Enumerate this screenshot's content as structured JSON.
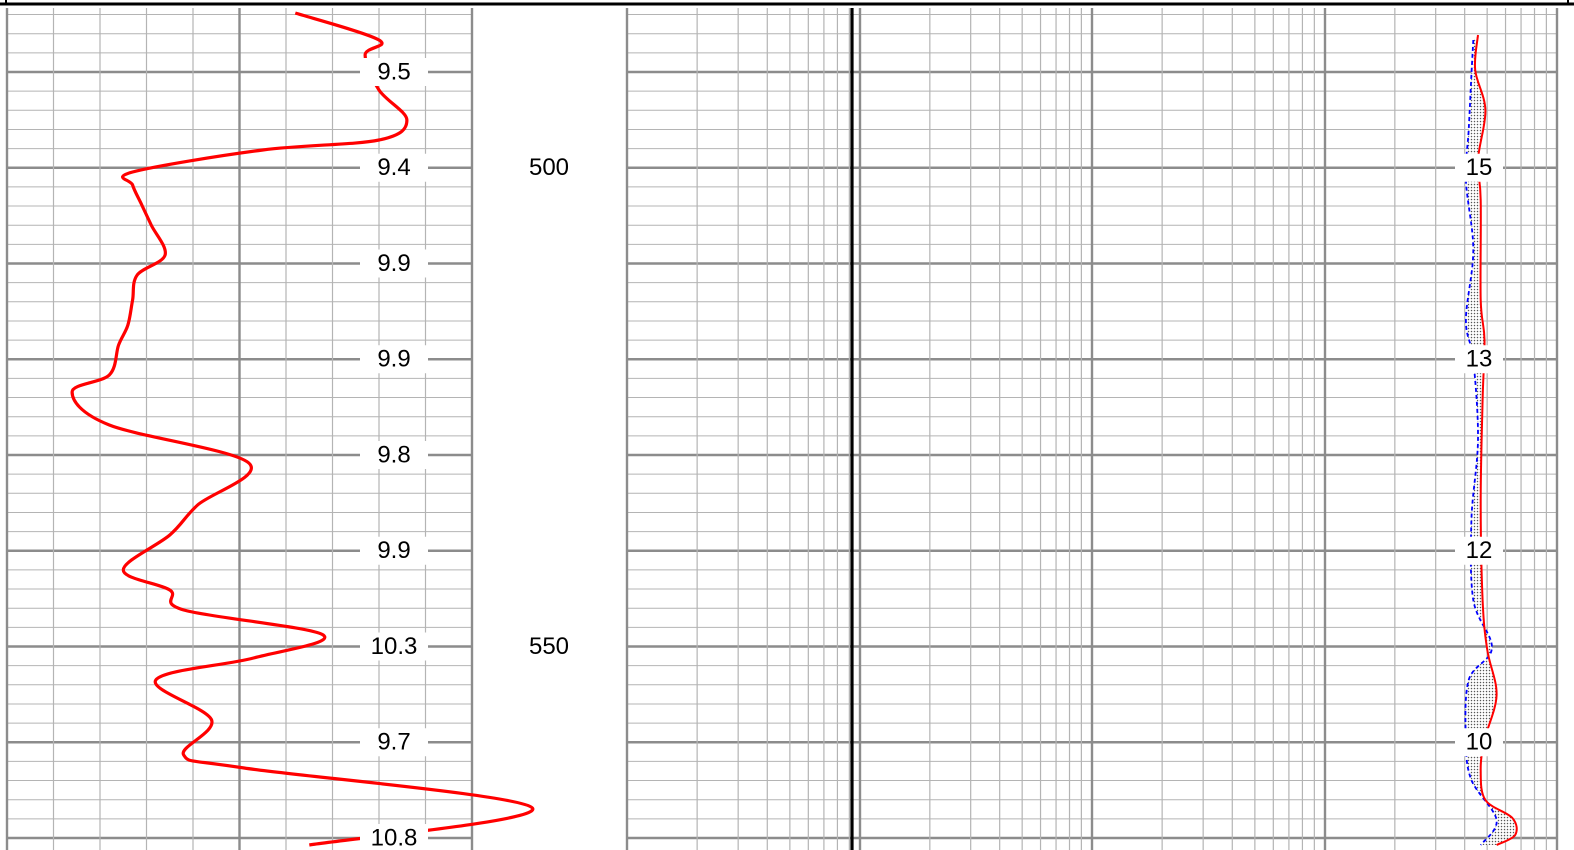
{
  "chart_data": [
    {
      "type": "line",
      "track": "left",
      "series": [
        {
          "color": "#ff0000",
          "points": [
            [
              0.62,
              13
            ],
            [
              0.8,
              40
            ],
            [
              0.77,
              55
            ],
            [
              0.8,
              90
            ],
            [
              0.86,
              120
            ],
            [
              0.8,
              140
            ],
            [
              0.55,
              150
            ],
            [
              0.27,
              172
            ],
            [
              0.27,
              185
            ],
            [
              0.29,
              205
            ],
            [
              0.31,
              225
            ],
            [
              0.34,
              255
            ],
            [
              0.28,
              275
            ],
            [
              0.27,
              300
            ],
            [
              0.26,
              325
            ],
            [
              0.24,
              345
            ],
            [
              0.22,
              375
            ],
            [
              0.14,
              392
            ],
            [
              0.22,
              425
            ],
            [
              0.52,
              463
            ],
            [
              0.41,
              505
            ],
            [
              0.35,
              535
            ],
            [
              0.25,
              570
            ],
            [
              0.35,
              590
            ],
            [
              0.38,
              610
            ],
            [
              0.68,
              635
            ],
            [
              0.53,
              658
            ],
            [
              0.32,
              680
            ],
            [
              0.44,
              720
            ],
            [
              0.38,
              755
            ],
            [
              0.51,
              768
            ],
            [
              1.13,
              808
            ],
            [
              0.65,
              845
            ]
          ]
        }
      ]
    },
    {
      "type": "line",
      "track": "right",
      "series": [
        {
          "color": "#ff0000",
          "points": [
            [
              0.915,
              35
            ],
            [
              0.912,
              70
            ],
            [
              0.923,
              110
            ],
            [
              0.915,
              160
            ],
            [
              0.918,
              200
            ],
            [
              0.918,
              300
            ],
            [
              0.922,
              340
            ],
            [
              0.92,
              400
            ],
            [
              0.918,
              500
            ],
            [
              0.92,
              600
            ],
            [
              0.925,
              650
            ],
            [
              0.935,
              695
            ],
            [
              0.922,
              740
            ],
            [
              0.918,
              770
            ],
            [
              0.923,
              800
            ],
            [
              0.952,
              818
            ],
            [
              0.955,
              835
            ],
            [
              0.935,
              845
            ]
          ]
        },
        {
          "color": "#0000ff",
          "points": [
            [
              0.91,
              40
            ],
            [
              0.908,
              75
            ],
            [
              0.905,
              130
            ],
            [
              0.902,
              180
            ],
            [
              0.91,
              250
            ],
            [
              0.902,
              320
            ],
            [
              0.91,
              360
            ],
            [
              0.915,
              440
            ],
            [
              0.908,
              520
            ],
            [
              0.91,
              600
            ],
            [
              0.93,
              648
            ],
            [
              0.905,
              680
            ],
            [
              0.902,
              740
            ],
            [
              0.908,
              780
            ],
            [
              0.935,
              820
            ],
            [
              0.918,
              845
            ]
          ]
        }
      ]
    }
  ],
  "scale_labels": [
    "9.5",
    "9.4",
    "9.9",
    "9.9",
    "9.8",
    "9.9",
    "10.3",
    "9.7",
    "10.8"
  ],
  "depth_labels": [
    "500",
    "550"
  ],
  "right_labels": [
    "15",
    "13",
    "12",
    "10"
  ]
}
